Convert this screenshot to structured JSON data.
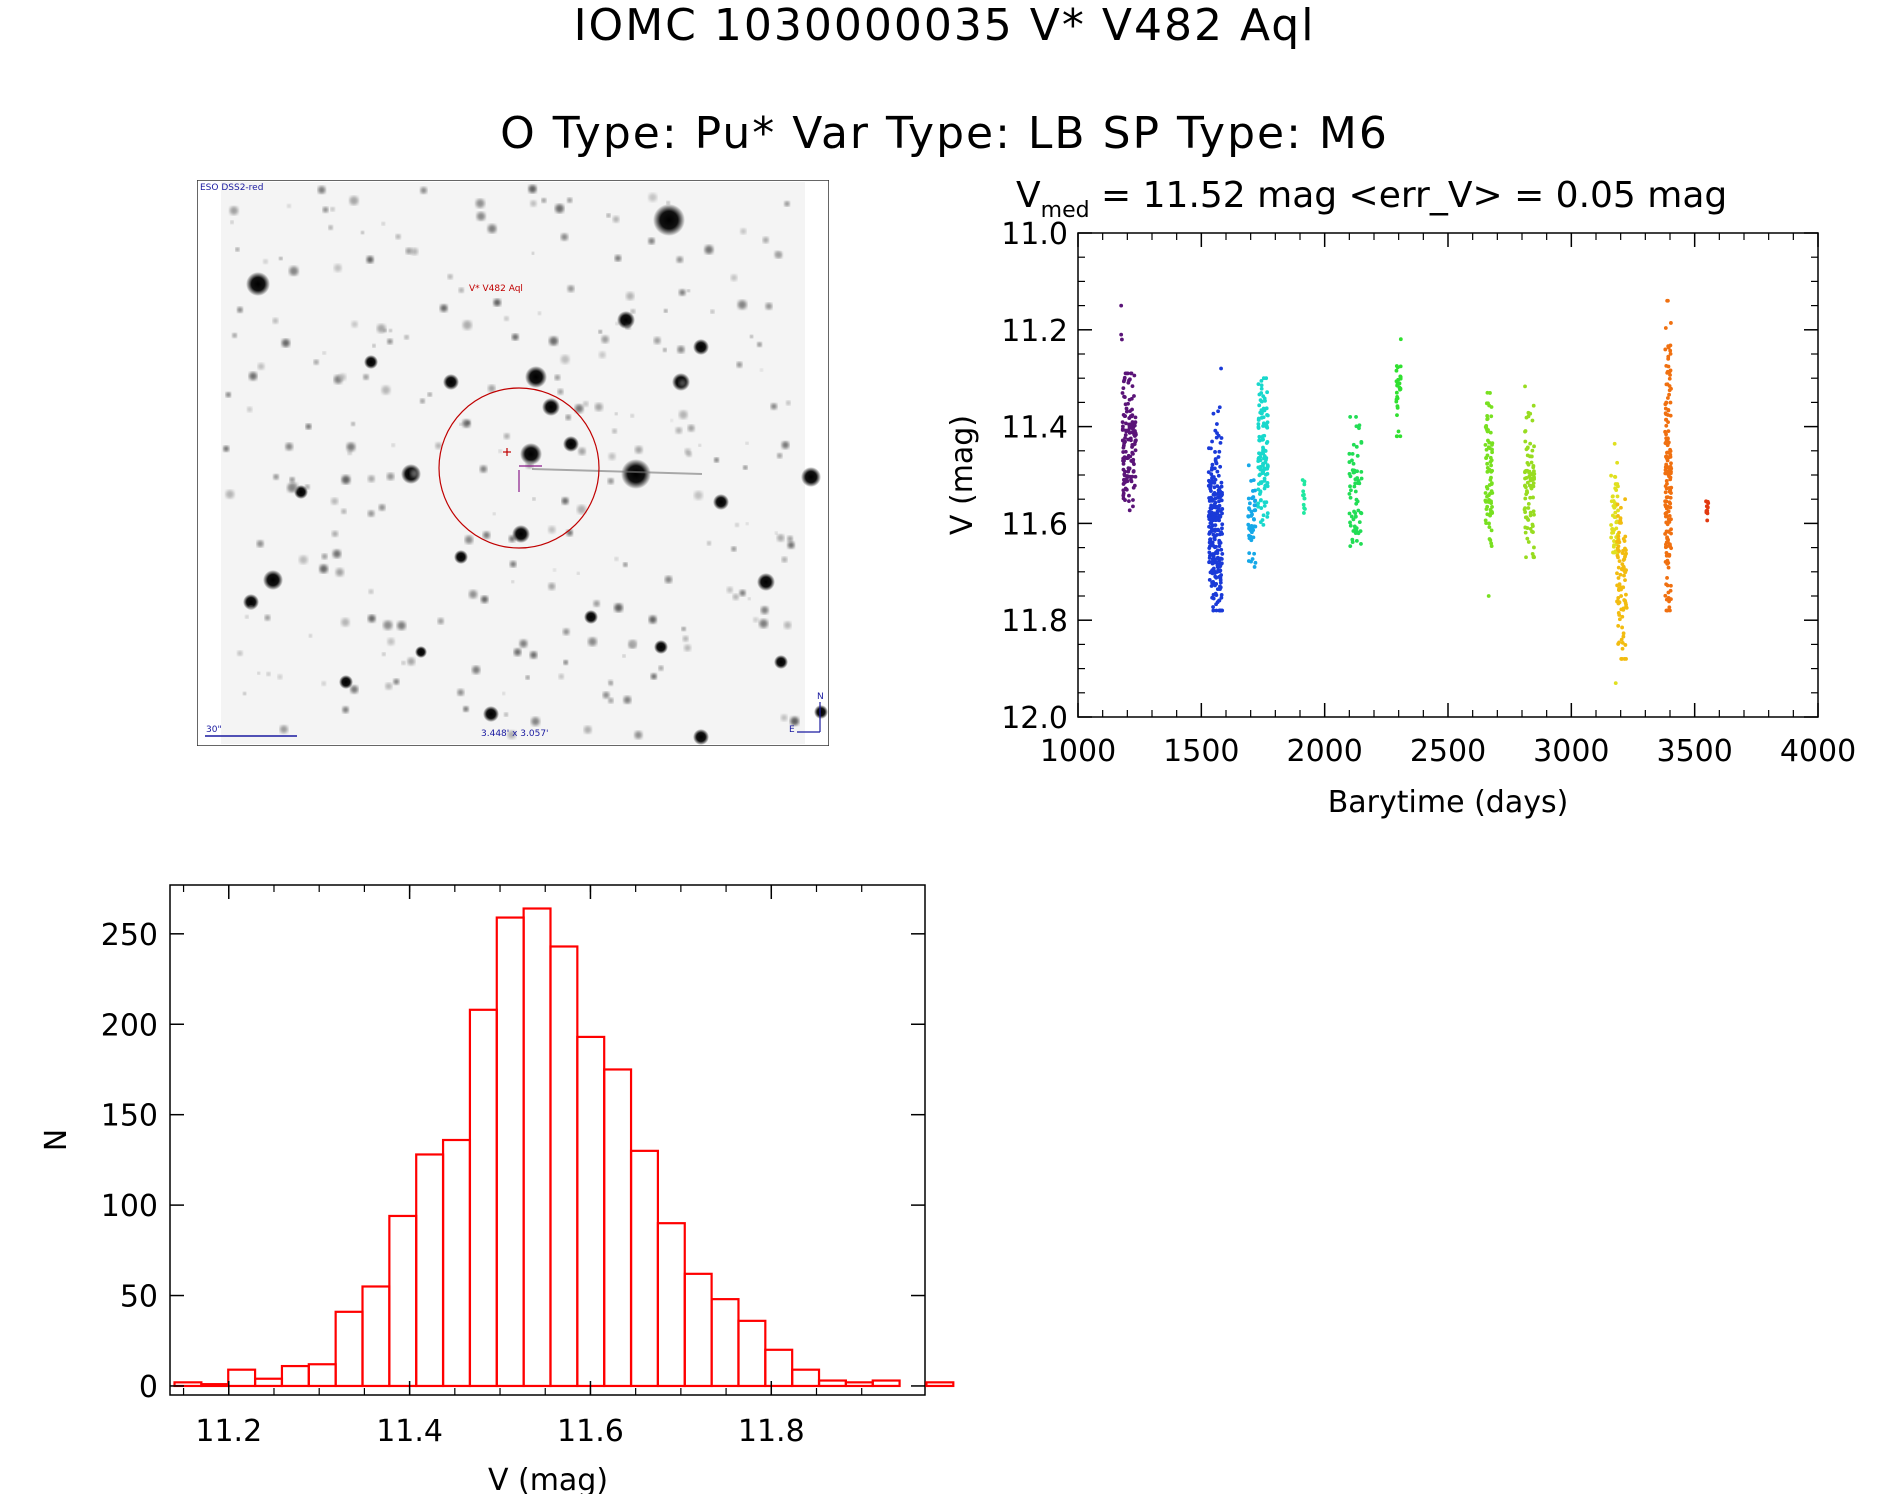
{
  "header": {
    "title_line1": "IOMC 1030000035    V* V482 Aql",
    "title_line2": "O Type: Pu*  Var Type: LB  SP Type: M6"
  },
  "finder_chart": {
    "survey_label": "ESO DSS2-red",
    "target_label": "V* V482 Aql",
    "scale_label": "30\"",
    "fov_label": "3.448' x 3.057'",
    "north_label": "N",
    "east_label": "E"
  },
  "chart_data": [
    {
      "type": "scatter",
      "name": "lightcurve",
      "title_prefix": "V",
      "title_subscript": "med",
      "title_text": " = 11.52 mag <err_V> = 0.05 mag",
      "xlabel": "Barytime (days)",
      "ylabel": "V (mag)",
      "xlim": [
        1000,
        4000
      ],
      "ylim": [
        12.0,
        11.0
      ],
      "x_ticks": [
        1000,
        1500,
        2000,
        2500,
        3000,
        3500,
        4000
      ],
      "y_ticks": [
        11.0,
        11.2,
        11.4,
        11.6,
        11.8,
        12.0
      ],
      "x_tick_labels": [
        "1000",
        "1500",
        "2000",
        "2500",
        "3000",
        "3500",
        "4000"
      ],
      "y_tick_labels": [
        "11.0",
        "11.2",
        "11.4",
        "11.6",
        "11.8",
        "12.0"
      ],
      "clusters": [
        {
          "x_start": 1180,
          "x_end": 1235,
          "v_min": 11.29,
          "v_max": 11.58,
          "v_center": 11.43,
          "n": 140,
          "color": "#5a1478",
          "outliers": [
            [
              1175,
              11.15
            ],
            [
              1175,
              11.21
            ],
            [
              1178,
              11.22
            ]
          ]
        },
        {
          "x_start": 1530,
          "x_end": 1585,
          "v_min": 11.36,
          "v_max": 11.78,
          "v_center": 11.6,
          "n": 260,
          "color": "#1a3ad8",
          "outliers": [
            [
              1580,
              11.28
            ]
          ]
        },
        {
          "x_start": 1690,
          "x_end": 1720,
          "v_min": 11.48,
          "v_max": 11.69,
          "v_center": 11.58,
          "n": 50,
          "color": "#16a8e8",
          "outliers": []
        },
        {
          "x_start": 1730,
          "x_end": 1770,
          "v_min": 11.3,
          "v_max": 11.66,
          "v_center": 11.45,
          "n": 120,
          "color": "#18d8cc",
          "outliers": []
        },
        {
          "x_start": 1910,
          "x_end": 1920,
          "v_min": 11.49,
          "v_max": 11.59,
          "v_center": 11.54,
          "n": 12,
          "color": "#20e8a0",
          "outliers": []
        },
        {
          "x_start": 2100,
          "x_end": 2150,
          "v_min": 11.38,
          "v_max": 11.69,
          "v_center": 11.54,
          "n": 70,
          "color": "#22dd55",
          "outliers": []
        },
        {
          "x_start": 2290,
          "x_end": 2310,
          "v_min": 11.2,
          "v_max": 11.42,
          "v_center": 11.32,
          "n": 30,
          "color": "#30e030",
          "outliers": []
        },
        {
          "x_start": 2650,
          "x_end": 2680,
          "v_min": 11.33,
          "v_max": 11.65,
          "v_center": 11.5,
          "n": 80,
          "color": "#78e020",
          "outliers": [
            [
              2665,
              11.75
            ]
          ]
        },
        {
          "x_start": 2810,
          "x_end": 2850,
          "v_min": 11.31,
          "v_max": 11.67,
          "v_center": 11.52,
          "n": 90,
          "color": "#98dc20",
          "outliers": []
        },
        {
          "x_start": 3160,
          "x_end": 3190,
          "v_min": 11.41,
          "v_max": 11.66,
          "v_center": 11.58,
          "n": 50,
          "color": "#e0e020",
          "outliers": [
            [
              3180,
              11.93
            ]
          ]
        },
        {
          "x_start": 3185,
          "x_end": 3225,
          "v_min": 11.55,
          "v_max": 11.88,
          "v_center": 11.72,
          "n": 90,
          "color": "#f2bc10",
          "outliers": []
        },
        {
          "x_start": 3380,
          "x_end": 3405,
          "v_min": 11.14,
          "v_max": 11.78,
          "v_center": 11.5,
          "n": 170,
          "color": "#f07010",
          "outliers": []
        },
        {
          "x_start": 3545,
          "x_end": 3555,
          "v_min": 11.55,
          "v_max": 11.6,
          "v_center": 11.57,
          "n": 12,
          "color": "#e23a10",
          "outliers": []
        }
      ]
    },
    {
      "type": "bar",
      "name": "histogram",
      "xlabel": "V (mag)",
      "ylabel": "N",
      "xlim": [
        11.135,
        11.97
      ],
      "ylim": [
        -5,
        277
      ],
      "bin_edges_start": 11.14,
      "bin_width": 0.0297,
      "values": [
        2,
        1,
        9,
        4,
        11,
        12,
        41,
        55,
        94,
        128,
        136,
        208,
        259,
        264,
        243,
        193,
        175,
        130,
        90,
        62,
        48,
        36,
        20,
        9,
        3,
        2,
        3,
        0,
        2
      ],
      "x_ticks": [
        11.2,
        11.4,
        11.6,
        11.8
      ],
      "x_tick_labels": [
        "11.2",
        "11.4",
        "11.6",
        "11.8"
      ],
      "y_ticks": [
        0,
        50,
        100,
        150,
        200,
        250
      ],
      "y_tick_labels": [
        "0",
        "50",
        "100",
        "150",
        "200",
        "250"
      ],
      "bar_color": "#ff0000"
    }
  ]
}
